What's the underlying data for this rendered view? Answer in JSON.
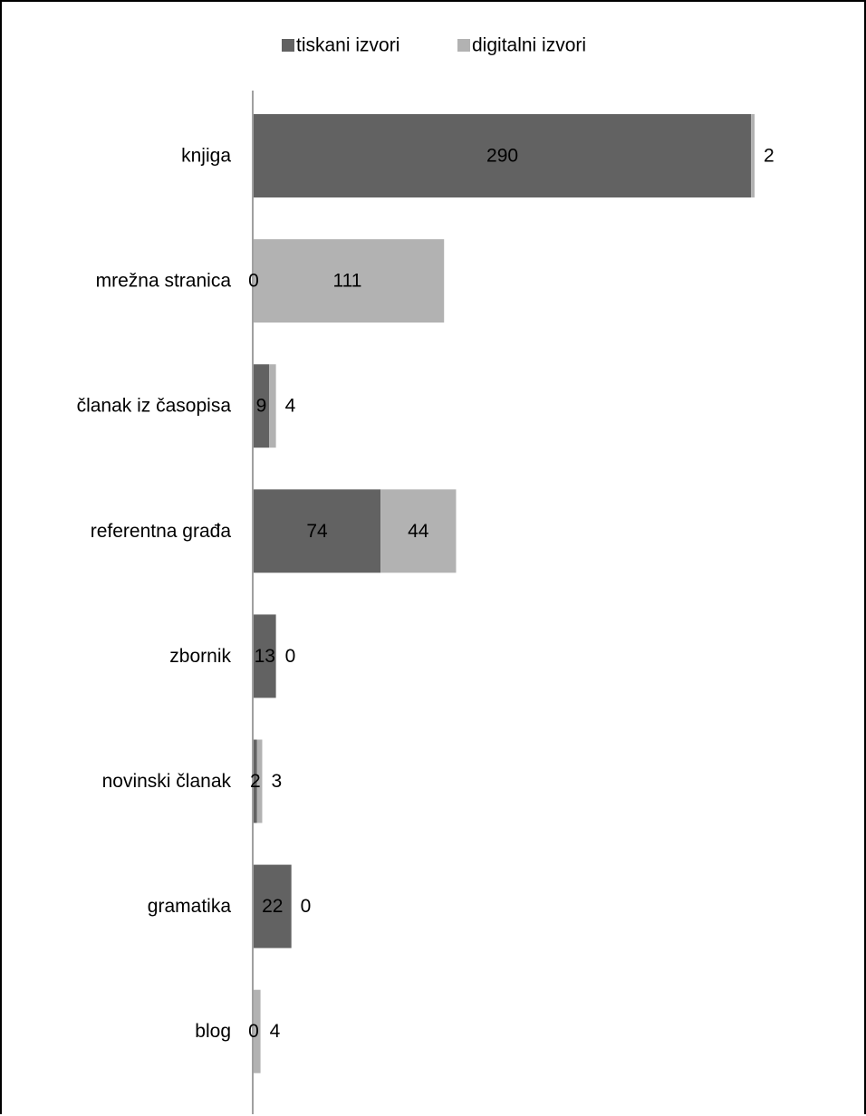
{
  "chart_data": {
    "type": "bar",
    "orientation": "horizontal",
    "stacked": true,
    "categories": [
      "knjiga",
      "mrežna stranica",
      "članak iz časopisa",
      "referentna građa",
      "zbornik",
      "novinski članak",
      "gramatika",
      "blog"
    ],
    "series": [
      {
        "name": "tiskani izvori",
        "values": [
          290,
          0,
          9,
          74,
          13,
          2,
          22,
          0
        ],
        "color": "#626262"
      },
      {
        "name": "digitalni izvori",
        "values": [
          2,
          111,
          4,
          44,
          0,
          3,
          0,
          4
        ],
        "color": "#b2b2b2"
      }
    ],
    "xlim": [
      0,
      292
    ],
    "legend_position": "top",
    "grid": false,
    "data_labels": true
  }
}
